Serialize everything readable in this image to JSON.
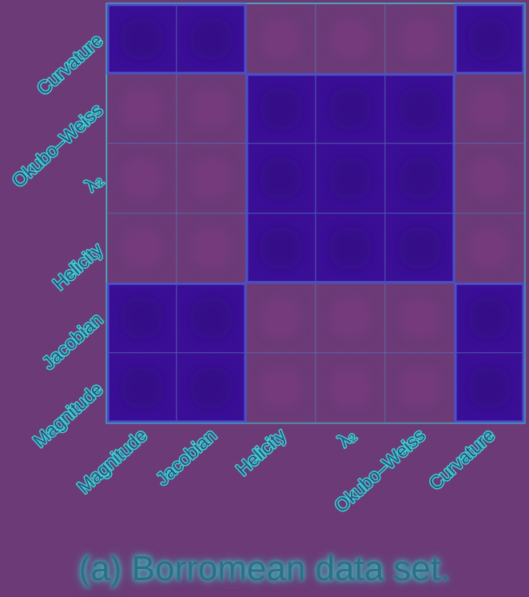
{
  "caption": "(a) Borromean data set.",
  "chart_data": {
    "type": "heatmap",
    "row_labels": [
      "Curvature",
      "Okubo–Weiss",
      "λ₂",
      "Helicity",
      "Jacobian",
      "Magnitude"
    ],
    "col_labels": [
      "Magnitude",
      "Jacobian",
      "Helicity",
      "λ₂",
      "Okubo–Weiss",
      "Curvature"
    ],
    "values": [
      [
        1,
        1,
        0,
        0,
        0,
        1
      ],
      [
        0,
        0,
        1,
        1,
        1,
        0
      ],
      [
        0,
        0,
        1,
        1,
        1,
        0
      ],
      [
        0,
        0,
        1,
        1,
        1,
        0
      ],
      [
        1,
        1,
        0,
        0,
        0,
        1
      ],
      [
        1,
        1,
        0,
        0,
        0,
        1
      ]
    ],
    "colors": {
      "high": "#3a0f96",
      "low": "#6b3a77",
      "outline": "#4a4fc8",
      "glow": "#43d0c8"
    },
    "blocks_outlined": true
  }
}
